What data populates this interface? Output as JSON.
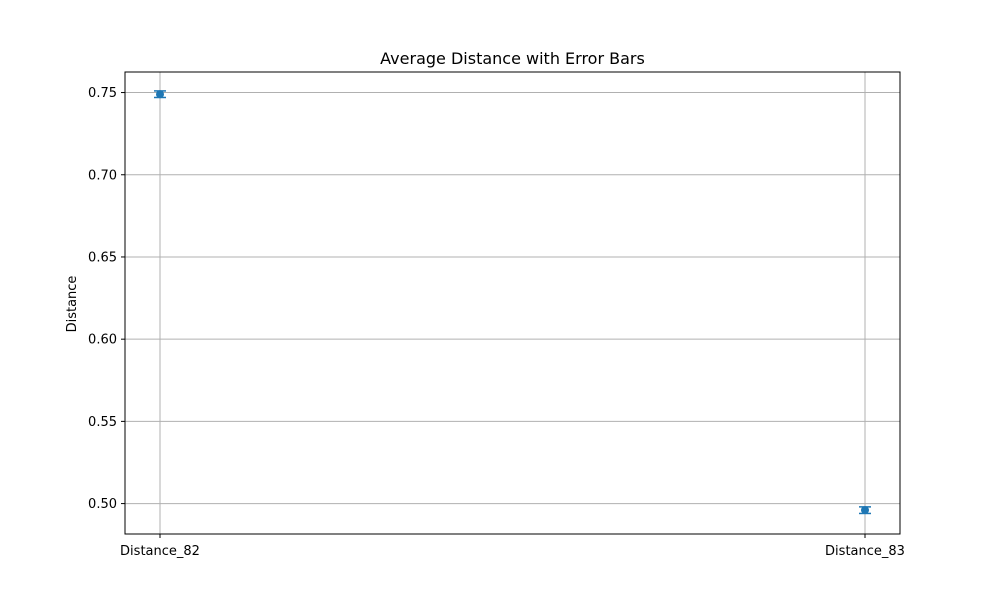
{
  "chart_data": {
    "type": "scatter",
    "title": "Average Distance with Error Bars",
    "xlabel": "",
    "ylabel": "Distance",
    "categories": [
      "Distance_82",
      "Distance_83"
    ],
    "values": [
      0.749,
      0.496
    ],
    "errors": [
      0.002,
      0.002
    ],
    "ylim": [
      0.4815,
      0.7625
    ],
    "yticks": [
      0.5,
      0.55,
      0.6,
      0.65,
      0.7,
      0.75
    ],
    "ytick_labels": [
      "0.50",
      "0.55",
      "0.60",
      "0.65",
      "0.70",
      "0.75"
    ],
    "grid": true,
    "legend": "none",
    "colors": {
      "marker": "#1f77b4",
      "grid": "#b0b0b0",
      "axis": "#000000"
    }
  }
}
